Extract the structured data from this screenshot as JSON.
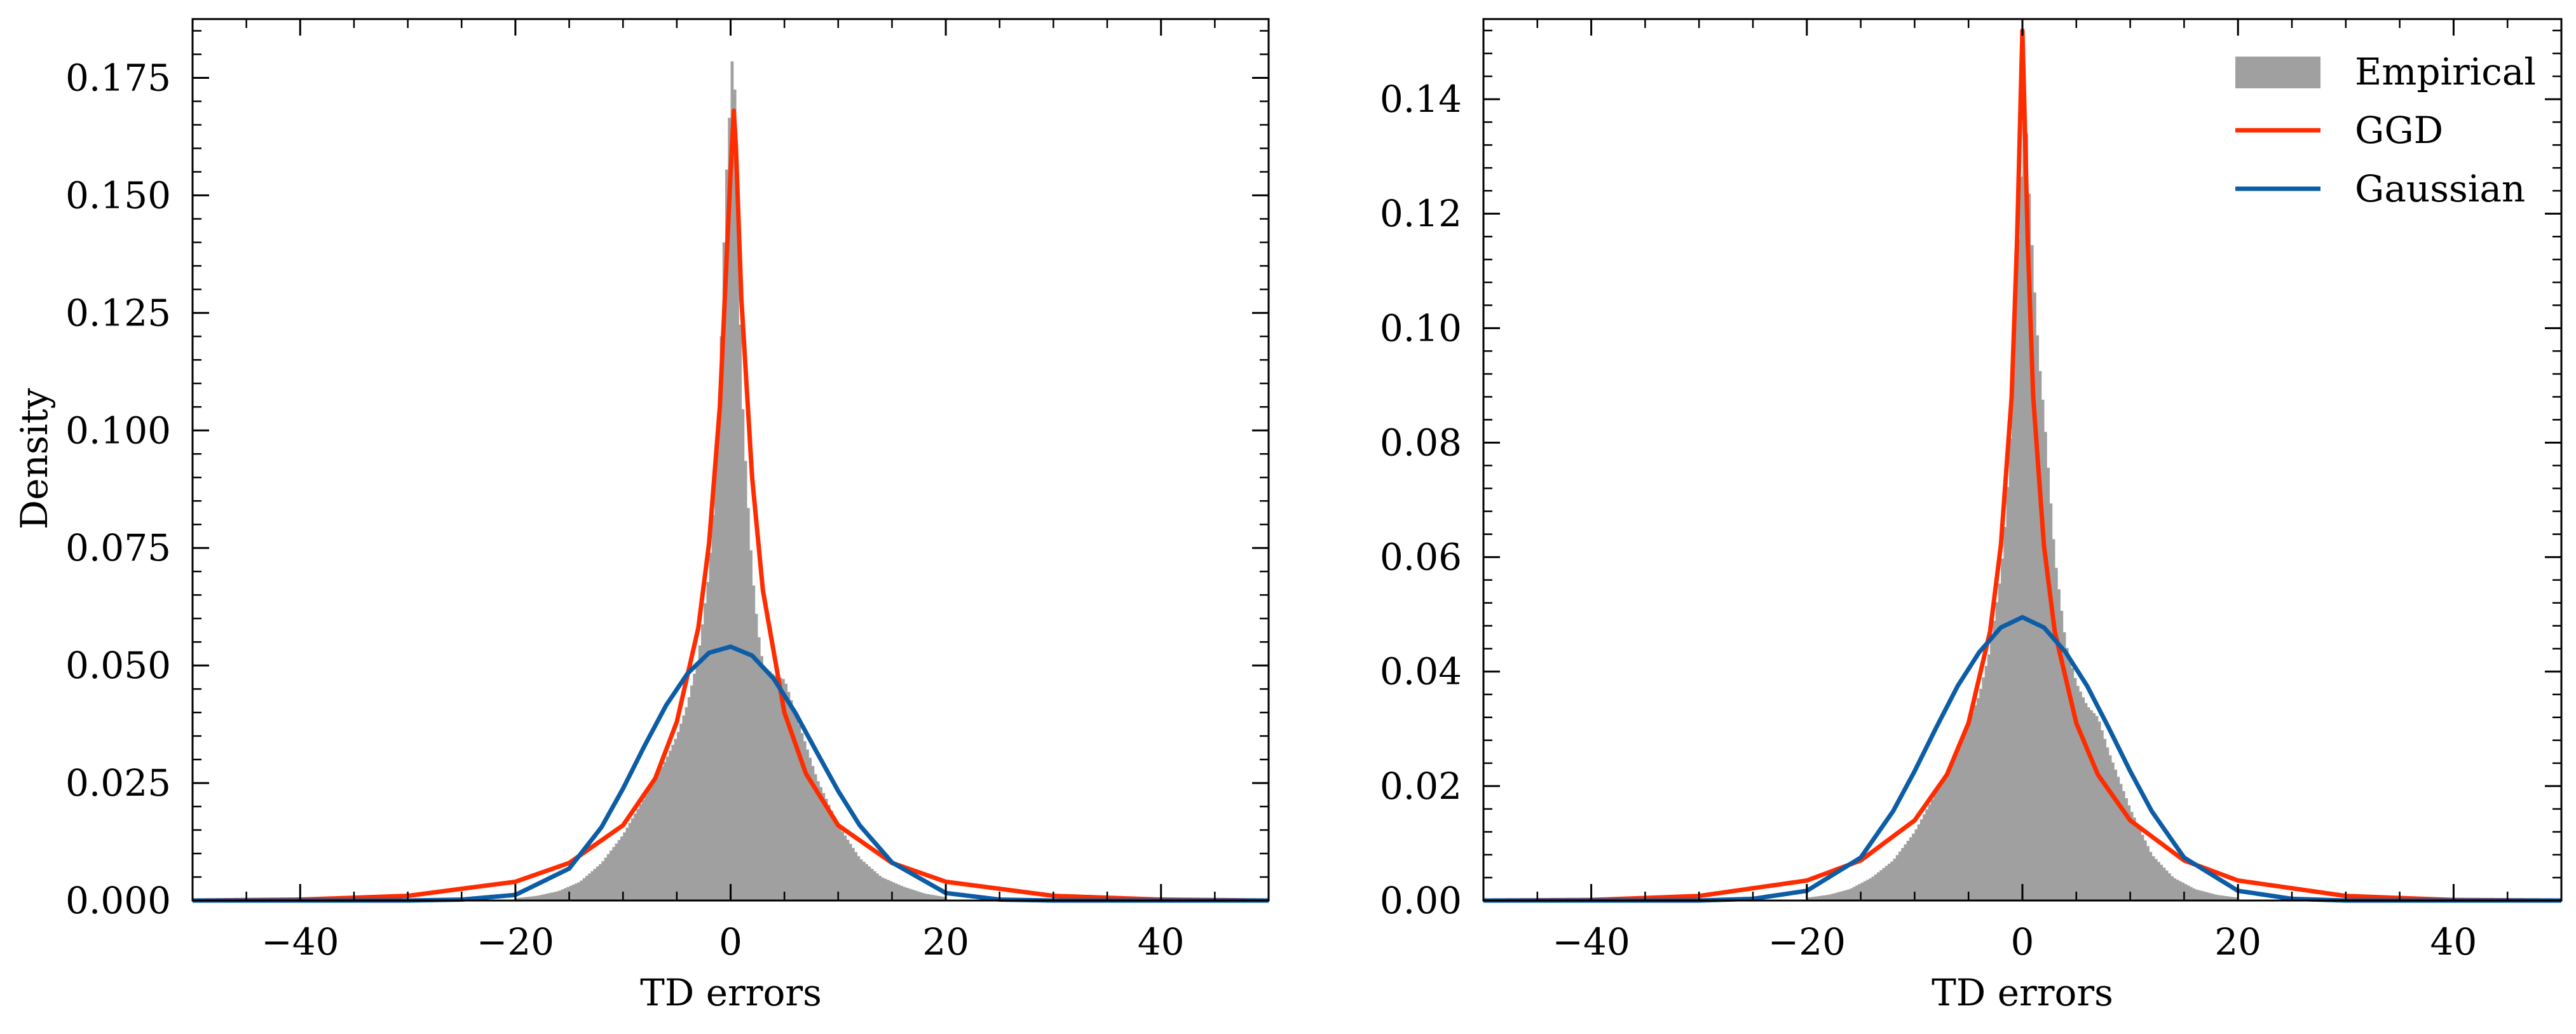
{
  "figure": {
    "background": "#ffffff"
  },
  "colors": {
    "empirical": "#a0a0a0",
    "ggd": "#ff2c00",
    "gaussian": "#0c5da5",
    "axis": "#000000"
  },
  "chart_data": [
    {
      "type": "histogram",
      "title": "",
      "xlabel": "TD errors",
      "ylabel": "Density",
      "xlim": [
        -50,
        50
      ],
      "ylim": [
        0,
        0.1875
      ],
      "x_ticks": [
        -40,
        -20,
        0,
        20,
        40
      ],
      "x_tick_labels": [
        "−40",
        "−20",
        "0",
        "20",
        "40"
      ],
      "y_ticks": [
        0.0,
        0.025,
        0.05,
        0.075,
        0.1,
        0.125,
        0.15,
        0.175
      ],
      "y_tick_labels": [
        "0.000",
        "0.025",
        "0.050",
        "0.075",
        "0.100",
        "0.125",
        "0.150",
        "0.175"
      ],
      "legend": null,
      "grid": false,
      "series": [
        {
          "name": "Empirical",
          "kind": "histogram",
          "x": [
            -20,
            -18,
            -16,
            -14,
            -12,
            -10,
            -8,
            -6,
            -5,
            -4,
            -3,
            -2,
            -1.5,
            -1,
            -0.5,
            0,
            0.25,
            0.5,
            0.75,
            1,
            1.5,
            2,
            2.5,
            3,
            4,
            5,
            6,
            8,
            10,
            12,
            14,
            16,
            18,
            20
          ],
          "y": [
            0.0005,
            0.001,
            0.002,
            0.004,
            0.008,
            0.014,
            0.022,
            0.03,
            0.035,
            0.042,
            0.052,
            0.07,
            0.086,
            0.11,
            0.15,
            0.172,
            0.185,
            0.16,
            0.135,
            0.11,
            0.088,
            0.07,
            0.058,
            0.05,
            0.048,
            0.047,
            0.04,
            0.026,
            0.016,
            0.009,
            0.005,
            0.003,
            0.0015,
            0.0007
          ]
        },
        {
          "name": "GGD",
          "kind": "line",
          "x": [
            -50,
            -40,
            -30,
            -20,
            -15,
            -10,
            -7,
            -5,
            -3,
            -2,
            -1,
            -0.5,
            0,
            0.3,
            0.5,
            1,
            2,
            3,
            5,
            7,
            10,
            15,
            20,
            30,
            40,
            50
          ],
          "y": [
            0.0,
            0.0002,
            0.001,
            0.004,
            0.008,
            0.016,
            0.026,
            0.038,
            0.058,
            0.076,
            0.105,
            0.13,
            0.155,
            0.168,
            0.16,
            0.128,
            0.09,
            0.066,
            0.04,
            0.027,
            0.016,
            0.008,
            0.004,
            0.001,
            0.0002,
            0.0
          ]
        },
        {
          "name": "Gaussian",
          "kind": "line",
          "x": [
            -50,
            -40,
            -30,
            -25,
            -20,
            -15,
            -12,
            -10,
            -8,
            -6,
            -4,
            -2,
            0,
            2,
            4,
            6,
            8,
            10,
            12,
            15,
            20,
            25,
            30,
            40,
            50
          ],
          "y": [
            0.0,
            0.0,
            0.0,
            0.0002,
            0.0012,
            0.0068,
            0.0156,
            0.0238,
            0.0329,
            0.0415,
            0.0483,
            0.0527,
            0.054,
            0.0521,
            0.0472,
            0.04,
            0.0316,
            0.0233,
            0.016,
            0.0081,
            0.0016,
            0.0002,
            0.0,
            0.0,
            0.0
          ]
        }
      ]
    },
    {
      "type": "histogram",
      "title": "",
      "xlabel": "TD errors",
      "ylabel": "",
      "xlim": [
        -50,
        50
      ],
      "ylim": [
        0,
        0.154
      ],
      "x_ticks": [
        -40,
        -20,
        0,
        20,
        40
      ],
      "x_tick_labels": [
        "−40",
        "−20",
        "0",
        "20",
        "40"
      ],
      "y_ticks": [
        0.0,
        0.02,
        0.04,
        0.06,
        0.08,
        0.1,
        0.12,
        0.14
      ],
      "y_tick_labels": [
        "0.00",
        "0.02",
        "0.04",
        "0.06",
        "0.08",
        "0.10",
        "0.12",
        "0.14"
      ],
      "legend": "top-right",
      "grid": false,
      "series": [
        {
          "name": "Empirical",
          "kind": "histogram",
          "x": [
            -20,
            -18,
            -16,
            -14,
            -12,
            -10,
            -8,
            -6,
            -5,
            -4,
            -3,
            -2,
            -1.5,
            -1,
            -0.5,
            0,
            0.25,
            0.5,
            1,
            1.5,
            2,
            3,
            4,
            5,
            6,
            7,
            8,
            10,
            12,
            14,
            16,
            18,
            20
          ],
          "y": [
            0.0005,
            0.001,
            0.002,
            0.004,
            0.007,
            0.012,
            0.019,
            0.026,
            0.031,
            0.036,
            0.044,
            0.057,
            0.068,
            0.085,
            0.11,
            0.132,
            0.14,
            0.128,
            0.11,
            0.095,
            0.085,
            0.06,
            0.045,
            0.038,
            0.034,
            0.032,
            0.026,
            0.016,
            0.008,
            0.004,
            0.002,
            0.001,
            0.0005
          ]
        },
        {
          "name": "GGD",
          "kind": "line",
          "x": [
            -50,
            -40,
            -30,
            -20,
            -15,
            -10,
            -7,
            -5,
            -3,
            -2,
            -1,
            -0.5,
            0,
            0.5,
            1,
            2,
            3,
            5,
            7,
            10,
            15,
            20,
            30,
            40,
            50
          ],
          "y": [
            0.0,
            0.0001,
            0.0008,
            0.0035,
            0.007,
            0.014,
            0.022,
            0.031,
            0.047,
            0.062,
            0.088,
            0.115,
            0.152,
            0.115,
            0.088,
            0.062,
            0.047,
            0.031,
            0.022,
            0.014,
            0.007,
            0.0035,
            0.0008,
            0.0001,
            0.0
          ]
        },
        {
          "name": "Gaussian",
          "kind": "line",
          "x": [
            -50,
            -40,
            -30,
            -25,
            -20,
            -15,
            -12,
            -10,
            -8,
            -6,
            -4,
            -2,
            0,
            2,
            4,
            6,
            8,
            10,
            12,
            15,
            20,
            25,
            30,
            40,
            50
          ],
          "y": [
            0.0,
            0.0,
            0.0,
            0.0003,
            0.0017,
            0.0075,
            0.0156,
            0.0226,
            0.0302,
            0.0375,
            0.0434,
            0.0477,
            0.0495,
            0.0477,
            0.0434,
            0.0375,
            0.0302,
            0.0226,
            0.0156,
            0.0075,
            0.0017,
            0.0003,
            0.0,
            0.0,
            0.0
          ]
        }
      ]
    }
  ]
}
